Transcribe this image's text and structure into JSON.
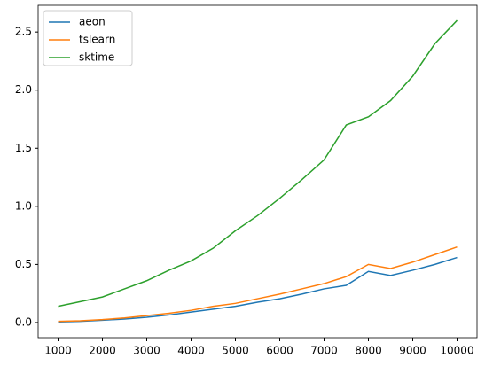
{
  "chart_data": {
    "type": "line",
    "x": [
      1000,
      1500,
      2000,
      2500,
      3000,
      3500,
      4000,
      4500,
      5000,
      5500,
      6000,
      6500,
      7000,
      7500,
      8000,
      8500,
      9000,
      9500,
      10000
    ],
    "series": [
      {
        "name": "aeon",
        "color": "#1f77b4",
        "values": [
          0.005,
          0.01,
          0.02,
          0.03,
          0.045,
          0.065,
          0.09,
          0.115,
          0.14,
          0.175,
          0.205,
          0.245,
          0.29,
          0.32,
          0.44,
          0.405,
          0.45,
          0.5,
          0.56
        ]
      },
      {
        "name": "tslearn",
        "color": "#ff7f0e",
        "values": [
          0.01,
          0.015,
          0.025,
          0.04,
          0.06,
          0.08,
          0.105,
          0.14,
          0.165,
          0.205,
          0.245,
          0.29,
          0.335,
          0.395,
          0.5,
          0.465,
          0.52,
          0.585,
          0.65
        ]
      },
      {
        "name": "sktime",
        "color": "#2ca02c",
        "values": [
          0.14,
          0.18,
          0.22,
          0.29,
          0.36,
          0.45,
          0.53,
          0.64,
          0.79,
          0.92,
          1.07,
          1.23,
          1.4,
          1.7,
          1.77,
          1.91,
          2.12,
          2.4,
          2.6
        ]
      }
    ],
    "xlim": [
      550,
      10450
    ],
    "xticks": [
      1000,
      2000,
      3000,
      4000,
      5000,
      6000,
      7000,
      8000,
      9000,
      10000
    ],
    "ylim": [
      -0.13,
      2.73
    ],
    "yticks": [
      {
        "value": 0,
        "label": "0.0"
      },
      0.5,
      {
        "value": 1,
        "label": "1.0"
      },
      1.5,
      {
        "value": 2,
        "label": "2.0"
      },
      2.5
    ],
    "legend": "upper left",
    "grid": false
  }
}
